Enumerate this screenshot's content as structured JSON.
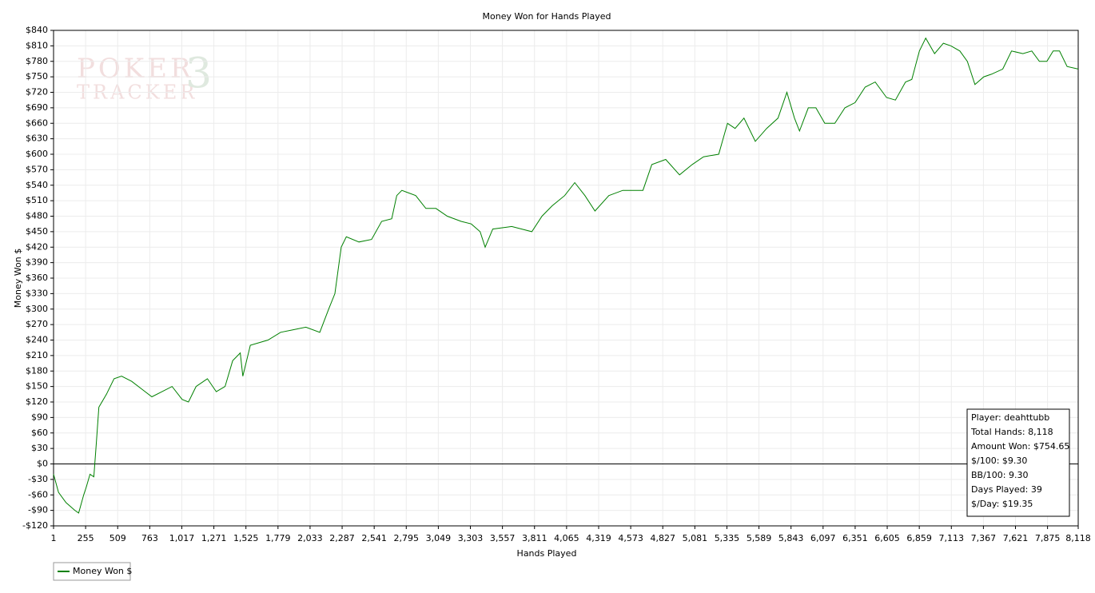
{
  "chart_data": {
    "type": "line",
    "title": "Money Won for Hands Played",
    "xlabel": "Hands Played",
    "ylabel": "Money Won $",
    "watermark": [
      "POKER",
      "TRACKER",
      "3"
    ],
    "annotations": [
      "Player: deahttubb",
      "Total Hands: 8,118",
      "Amount Won: $754.65",
      "$/100: $9.30",
      "BB/100: 9.30",
      "Days Played: 39",
      "$/Day: $19.35"
    ],
    "grid": true,
    "legend": "bottom-left",
    "xlim": [
      1,
      8118
    ],
    "ylim": [
      -120,
      840
    ],
    "xticks": [
      1,
      255,
      509,
      763,
      {
        "value": 1017,
        "label": "1,017"
      },
      {
        "value": 1271,
        "label": "1,271"
      },
      {
        "value": 1525,
        "label": "1,525"
      },
      {
        "value": 1779,
        "label": "1,779"
      },
      {
        "value": 2033,
        "label": "2,033"
      },
      {
        "value": 2287,
        "label": "2,287"
      },
      {
        "value": 2541,
        "label": "2,541"
      },
      {
        "value": 2795,
        "label": "2,795"
      },
      {
        "value": 3049,
        "label": "3,049"
      },
      {
        "value": 3303,
        "label": "3,303"
      },
      {
        "value": 3557,
        "label": "3,557"
      },
      {
        "value": 3811,
        "label": "3,811"
      },
      {
        "value": 4065,
        "label": "4,065"
      },
      {
        "value": 4319,
        "label": "4,319"
      },
      {
        "value": 4573,
        "label": "4,573"
      },
      {
        "value": 4827,
        "label": "4,827"
      },
      {
        "value": 5081,
        "label": "5,081"
      },
      {
        "value": 5335,
        "label": "5,335"
      },
      {
        "value": 5589,
        "label": "5,589"
      },
      {
        "value": 5843,
        "label": "5,843"
      },
      {
        "value": 6097,
        "label": "6,097"
      },
      {
        "value": 6351,
        "label": "6,351"
      },
      {
        "value": 6605,
        "label": "6,605"
      },
      {
        "value": 6859,
        "label": "6,859"
      },
      {
        "value": 7113,
        "label": "7,113"
      },
      {
        "value": 7367,
        "label": "7,367"
      },
      {
        "value": 7621,
        "label": "7,621"
      },
      {
        "value": 7875,
        "label": "7,875"
      },
      {
        "value": 8118,
        "label": "8,118"
      }
    ],
    "yticks": [
      {
        "value": -120,
        "label": "-$120"
      },
      {
        "value": -90,
        "label": "-$90"
      },
      {
        "value": -60,
        "label": "-$60"
      },
      {
        "value": -30,
        "label": "-$30"
      },
      {
        "value": 0,
        "label": "$0"
      },
      {
        "value": 30,
        "label": "$30"
      },
      {
        "value": 60,
        "label": "$60"
      },
      {
        "value": 90,
        "label": "$90"
      },
      {
        "value": 120,
        "label": "$120"
      },
      {
        "value": 150,
        "label": "$150"
      },
      {
        "value": 180,
        "label": "$180"
      },
      {
        "value": 210,
        "label": "$210"
      },
      {
        "value": 240,
        "label": "$240"
      },
      {
        "value": 270,
        "label": "$270"
      },
      {
        "value": 300,
        "label": "$300"
      },
      {
        "value": 330,
        "label": "$330"
      },
      {
        "value": 360,
        "label": "$360"
      },
      {
        "value": 390,
        "label": "$390"
      },
      {
        "value": 420,
        "label": "$420"
      },
      {
        "value": 450,
        "label": "$450"
      },
      {
        "value": 480,
        "label": "$480"
      },
      {
        "value": 510,
        "label": "$510"
      },
      {
        "value": 540,
        "label": "$540"
      },
      {
        "value": 570,
        "label": "$570"
      },
      {
        "value": 600,
        "label": "$600"
      },
      {
        "value": 630,
        "label": "$630"
      },
      {
        "value": 660,
        "label": "$660"
      },
      {
        "value": 690,
        "label": "$690"
      },
      {
        "value": 720,
        "label": "$720"
      },
      {
        "value": 750,
        "label": "$750"
      },
      {
        "value": 780,
        "label": "$780"
      },
      {
        "value": 810,
        "label": "$810"
      },
      {
        "value": 840,
        "label": "$840"
      }
    ],
    "x": [
      1,
      40,
      100,
      170,
      200,
      240,
      260,
      290,
      320,
      340,
      360,
      420,
      480,
      540,
      620,
      700,
      780,
      860,
      940,
      1020,
      1070,
      1130,
      1220,
      1290,
      1360,
      1420,
      1480,
      1500,
      1560,
      1700,
      1800,
      1900,
      2000,
      2110,
      2180,
      2230,
      2280,
      2320,
      2420,
      2520,
      2600,
      2680,
      2720,
      2760,
      2870,
      2950,
      3030,
      3120,
      3230,
      3310,
      3380,
      3420,
      3480,
      3630,
      3790,
      3870,
      3950,
      4050,
      4130,
      4210,
      4290,
      4400,
      4510,
      4670,
      4740,
      4850,
      4960,
      5060,
      5150,
      5270,
      5340,
      5400,
      5470,
      5560,
      5650,
      5740,
      5810,
      5870,
      5910,
      5980,
      6040,
      6110,
      6190,
      6270,
      6350,
      6430,
      6510,
      6600,
      6670,
      6750,
      6800,
      6860,
      6910,
      6980,
      7050,
      7110,
      7180,
      7240,
      7300,
      7370,
      7430,
      7520,
      7590,
      7680,
      7750,
      7810,
      7870,
      7920,
      7970,
      8030,
      8118
    ],
    "series": [
      {
        "name": "Money Won $",
        "color": "#008000",
        "values": [
          -20,
          -55,
          -75,
          -90,
          -95,
          -60,
          -45,
          -20,
          -25,
          40,
          110,
          135,
          165,
          170,
          160,
          145,
          130,
          140,
          150,
          125,
          120,
          150,
          165,
          140,
          150,
          200,
          215,
          170,
          230,
          240,
          255,
          260,
          265,
          255,
          300,
          330,
          420,
          440,
          430,
          435,
          470,
          475,
          520,
          530,
          520,
          495,
          495,
          480,
          470,
          465,
          450,
          420,
          455,
          460,
          450,
          480,
          500,
          520,
          545,
          520,
          490,
          520,
          530,
          530,
          580,
          590,
          560,
          580,
          595,
          600,
          660,
          650,
          670,
          625,
          650,
          670,
          720,
          670,
          645,
          690,
          690,
          660,
          660,
          690,
          700,
          730,
          740,
          710,
          705,
          740,
          745,
          800,
          825,
          795,
          815,
          810,
          800,
          780,
          735,
          750,
          755,
          765,
          800,
          795,
          800,
          780,
          780,
          800,
          800,
          770,
          765
        ]
      }
    ]
  }
}
